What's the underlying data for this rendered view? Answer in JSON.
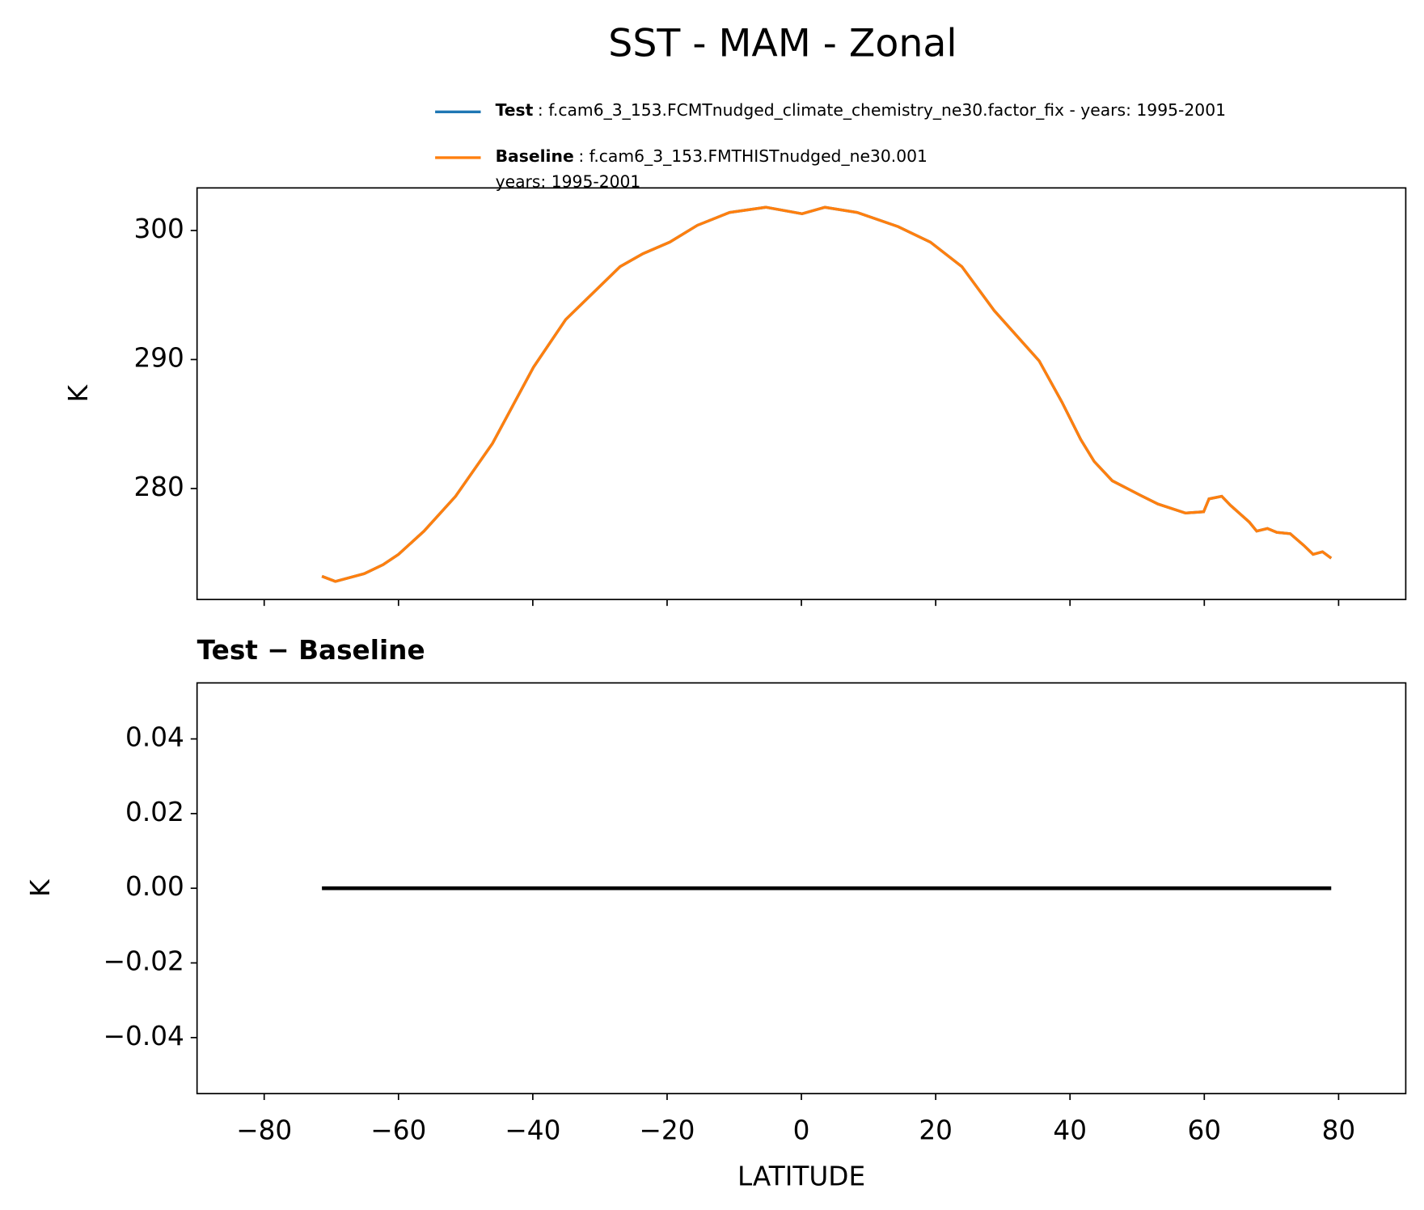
{
  "chart_data": [
    {
      "type": "line",
      "title": "SST - MAM - Zonal",
      "ylabel": "K",
      "x": [
        -71.4,
        -69.4,
        -65.1,
        -62.3,
        -60.0,
        -56.2,
        -51.5,
        -46.0,
        -39.9,
        -35.1,
        -27.0,
        -23.6,
        -19.6,
        -15.5,
        -10.7,
        -5.3,
        0.1,
        3.5,
        8.3,
        14.4,
        19.2,
        23.9,
        28.7,
        35.4,
        38.8,
        41.6,
        43.6,
        46.3,
        50.4,
        53.1,
        57.2,
        59.9,
        60.7,
        62.6,
        63.9,
        66.7,
        67.8,
        69.4,
        70.8,
        72.8,
        74.8,
        76.2,
        77.6,
        78.9
      ],
      "series": [
        {
          "name": "Test",
          "description": [
            ": f.cam6_3_153.FCMTnudged_climate_chemistry_ne30.factor_fix - years: 1995-2001"
          ],
          "color": "#1f77b4",
          "values": [
            273.2,
            272.8,
            273.4,
            274.1,
            274.9,
            276.7,
            279.4,
            283.5,
            289.4,
            293.1,
            297.2,
            298.2,
            299.1,
            300.4,
            301.4,
            301.8,
            301.3,
            301.8,
            301.4,
            300.3,
            299.1,
            297.2,
            293.8,
            289.9,
            286.7,
            283.8,
            282.1,
            280.6,
            279.5,
            278.8,
            278.1,
            278.2,
            279.2,
            279.4,
            278.7,
            277.4,
            276.7,
            276.9,
            276.6,
            276.5,
            275.6,
            274.9,
            275.1,
            274.6
          ]
        },
        {
          "name": "Baseline",
          "description": [
            ": f.cam6_3_153.FMTHISTnudged_ne30.001",
            "years: 1995-2001"
          ],
          "color": "#ff7f0e",
          "values": [
            273.2,
            272.8,
            273.4,
            274.1,
            274.9,
            276.7,
            279.4,
            283.5,
            289.4,
            293.1,
            297.2,
            298.2,
            299.1,
            300.4,
            301.4,
            301.8,
            301.3,
            301.8,
            301.4,
            300.3,
            299.1,
            297.2,
            293.8,
            289.9,
            286.7,
            283.8,
            282.1,
            280.6,
            279.5,
            278.8,
            278.1,
            278.2,
            279.2,
            279.4,
            278.7,
            277.4,
            276.7,
            276.9,
            276.6,
            276.5,
            275.6,
            274.9,
            275.1,
            274.6
          ]
        }
      ],
      "xlim": [
        -90,
        90
      ],
      "xticks": [
        {
          "value": -80,
          "label": "−80"
        },
        {
          "value": -60,
          "label": "−60"
        },
        {
          "value": -40,
          "label": "−40"
        },
        {
          "value": -20,
          "label": "−20"
        },
        0,
        20,
        40,
        60,
        80
      ],
      "ylim": [
        271.4,
        303.3
      ],
      "yticks": [
        280,
        290,
        300
      ]
    },
    {
      "type": "line",
      "title": "Test − Baseline",
      "ylabel": "K",
      "xlabel": "LATITUDE",
      "x": [
        -71.4,
        78.9
      ],
      "series": [
        {
          "color": "#000000",
          "values": [
            0,
            0
          ]
        }
      ],
      "xlim": [
        -90,
        90
      ],
      "xticks": [
        {
          "value": -80,
          "label": "−80"
        },
        {
          "value": -60,
          "label": "−60"
        },
        {
          "value": -40,
          "label": "−40"
        },
        {
          "value": -20,
          "label": "−20"
        },
        0,
        20,
        40,
        60,
        80
      ],
      "ylim": [
        -0.055,
        0.055
      ],
      "yticks": [
        {
          "value": -0.04,
          "label": "−0.04"
        },
        {
          "value": -0.02,
          "label": "−0.02"
        },
        {
          "value": 0,
          "label": "0.00"
        },
        0.02,
        0.04
      ]
    }
  ]
}
